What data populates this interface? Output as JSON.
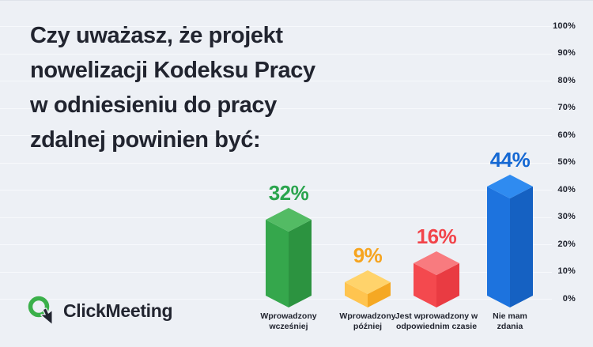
{
  "header": {
    "title": "Czy uważasz, że projekt\nnowelizacji Kodeksu Pracy\nw odniesieniu do pracy\nzdalnej powinien być:"
  },
  "branding": {
    "name": "ClickMeeting"
  },
  "chart_data": {
    "type": "bar",
    "title": "Czy uważasz, że projekt nowelizacji Kodeksu Pracy w odniesieniu do pracy zdalnej powinien być:",
    "categories": [
      "Wprowadzony wcześniej",
      "Wprowadzony później",
      "Jest wprowadzony w odpowiednim czasie",
      "Nie mam zdania"
    ],
    "values": [
      32,
      9,
      16,
      44
    ],
    "value_labels": [
      "32%",
      "9%",
      "16%",
      "44%"
    ],
    "categories_display": [
      "Wprowadzony\nwcześniej",
      "Wprowadzony\npóźniej",
      "Jest wprowadzony w\nodpowiednim czasie",
      "Nie mam\nzdania"
    ],
    "bar_colors": [
      {
        "name": "green",
        "label": "#2AA44D",
        "top": "#53BB64",
        "left": "#35A74C",
        "right": "#2C9340"
      },
      {
        "name": "yellow",
        "label": "#F6A41F",
        "top": "#FFD36B",
        "left": "#FFC44F",
        "right": "#F5A823"
      },
      {
        "name": "red",
        "label": "#F2444A",
        "top": "#F87B7F",
        "left": "#F4494E",
        "right": "#E93B42"
      },
      {
        "name": "blue",
        "label": "#1568D3",
        "top": "#2F8BF0",
        "left": "#1D73DE",
        "right": "#1561C2"
      }
    ],
    "xlabel": "",
    "ylabel": "",
    "ylim": [
      0,
      100
    ],
    "y_ticks": [
      "0%",
      "10%",
      "20%",
      "30%",
      "40%",
      "50%",
      "60%",
      "70%",
      "80%",
      "90%",
      "100%"
    ],
    "yaxis_position": "right",
    "grid": true,
    "legend": false,
    "bar_style": "3d-isometric"
  },
  "colors": {
    "background": "#EDF0F5",
    "text": "#21242F",
    "grid": "#F7F9FC",
    "logo_green": "#3BB04A"
  }
}
